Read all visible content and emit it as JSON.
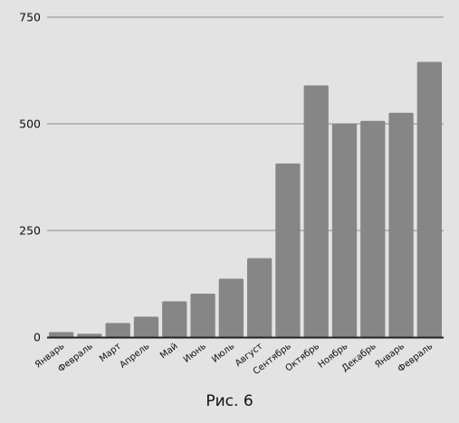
{
  "chart_data": {
    "type": "bar",
    "categories": [
      "Январь",
      "Февраль",
      "Март",
      "Апрель",
      "Май",
      "Июнь",
      "Июль",
      "Август",
      "Сентябрь",
      "Октябрь",
      "Ноябрь",
      "Декабрь",
      "Январь",
      "Февраль"
    ],
    "values": [
      12,
      8,
      33,
      48,
      84,
      102,
      137,
      185,
      407,
      590,
      500,
      507,
      526,
      645
    ],
    "ylim": [
      0,
      750
    ],
    "yticks": [
      0,
      250,
      500,
      750
    ],
    "grid": true,
    "bar_color": "#868686",
    "grid_color": "#8a8a8a",
    "axis_color": "#222222"
  },
  "caption": "Рис. 6"
}
